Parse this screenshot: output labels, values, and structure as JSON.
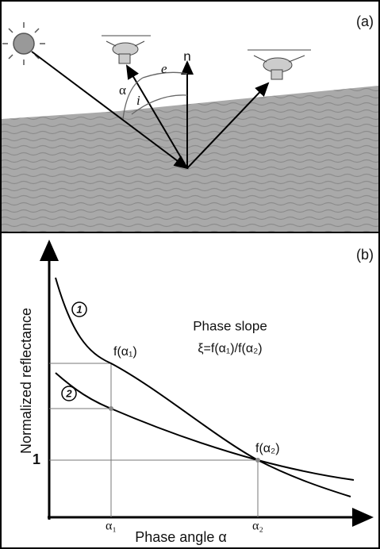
{
  "panel_a": {
    "label": "(a)",
    "normal": "n",
    "phase_angle": "α",
    "incidence": "i",
    "emission": "e"
  },
  "panel_b": {
    "label": "(b)",
    "y_axis_label": "Normalized reflectance",
    "x_axis_label": "Phase angle α",
    "y_tick": "1",
    "x_ticks": [
      "α₁",
      "α₂"
    ],
    "curve_labels": [
      "1",
      "2"
    ],
    "point_labels": [
      "f(α₁)",
      "f(α₂)"
    ],
    "annotation_title": "Phase slope",
    "annotation_formula": "ξ=f(α₁)/f(α₂)"
  }
}
